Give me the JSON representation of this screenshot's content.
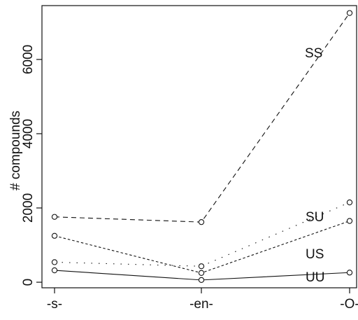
{
  "chart_data": {
    "type": "line",
    "title": "",
    "xlabel": "",
    "ylabel": "# compounds",
    "categories": [
      "-s-",
      "-en-",
      "-O-"
    ],
    "ylim": [
      -150,
      7450
    ],
    "yticks": [
      0,
      2000,
      4000,
      6000
    ],
    "grid": false,
    "legend": "none",
    "series": [
      {
        "name": "SS",
        "values": [
          1760,
          1620,
          7250
        ],
        "line_style": "long-dash"
      },
      {
        "name": "SU",
        "values": [
          540,
          430,
          2150
        ],
        "line_style": "dotted"
      },
      {
        "name": "US",
        "values": [
          1250,
          250,
          1650
        ],
        "line_style": "short-dash"
      },
      {
        "name": "UU",
        "values": [
          320,
          60,
          260
        ],
        "line_style": "solid"
      }
    ],
    "colors": {
      "ink": "#111111"
    }
  }
}
